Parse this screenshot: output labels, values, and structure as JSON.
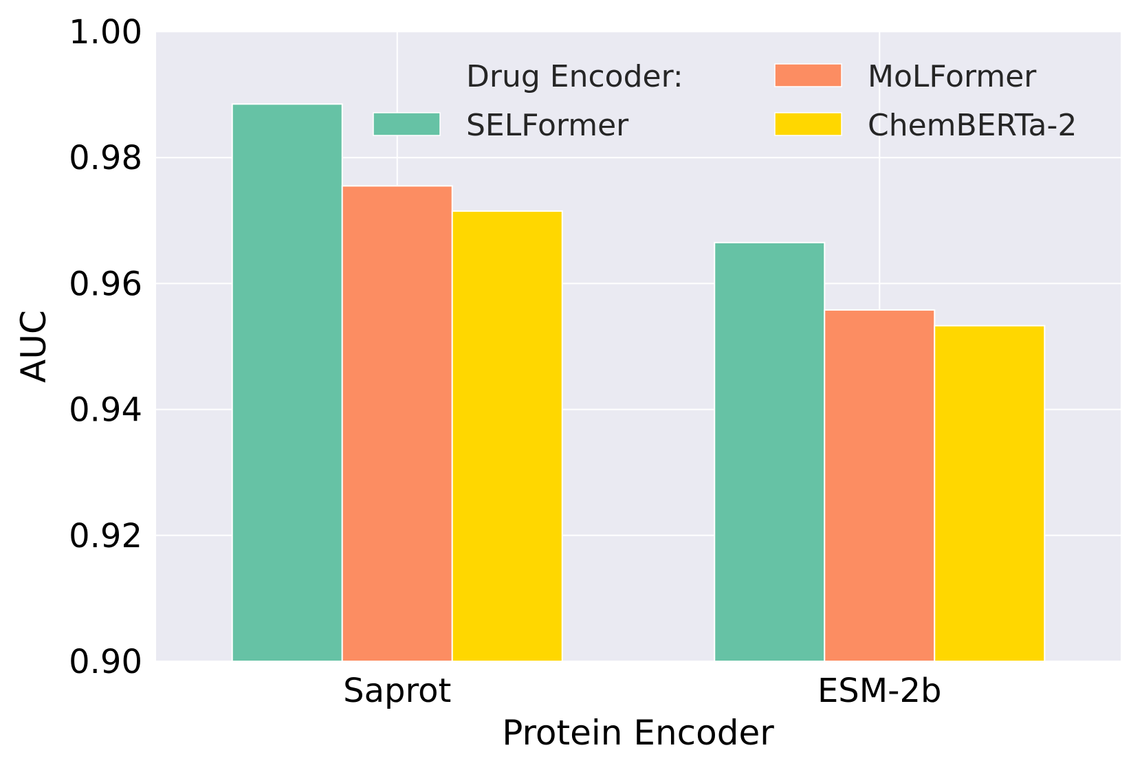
{
  "chart_data": {
    "type": "bar",
    "title": "",
    "xlabel": "Protein Encoder",
    "ylabel": "AUC",
    "categories": [
      "Saprot",
      "ESM-2b"
    ],
    "series": [
      {
        "name": "SELFormer",
        "color": "#66c2a5",
        "values": [
          0.9885,
          0.9665
        ]
      },
      {
        "name": "MoLFormer",
        "color": "#fc8d62",
        "values": [
          0.9755,
          0.9558
        ]
      },
      {
        "name": "ChemBERTa-2",
        "color": "#ffd700",
        "values": [
          0.9715,
          0.9533
        ]
      }
    ],
    "ylim": [
      0.9,
      1.0
    ],
    "yticks": [
      "0.90",
      "0.92",
      "0.94",
      "0.96",
      "0.98",
      "1.00"
    ],
    "grid": true,
    "background": "#eaeaf2",
    "legend": {
      "title": "Drug Encoder:",
      "placement": "top-right",
      "columns": 2
    }
  }
}
